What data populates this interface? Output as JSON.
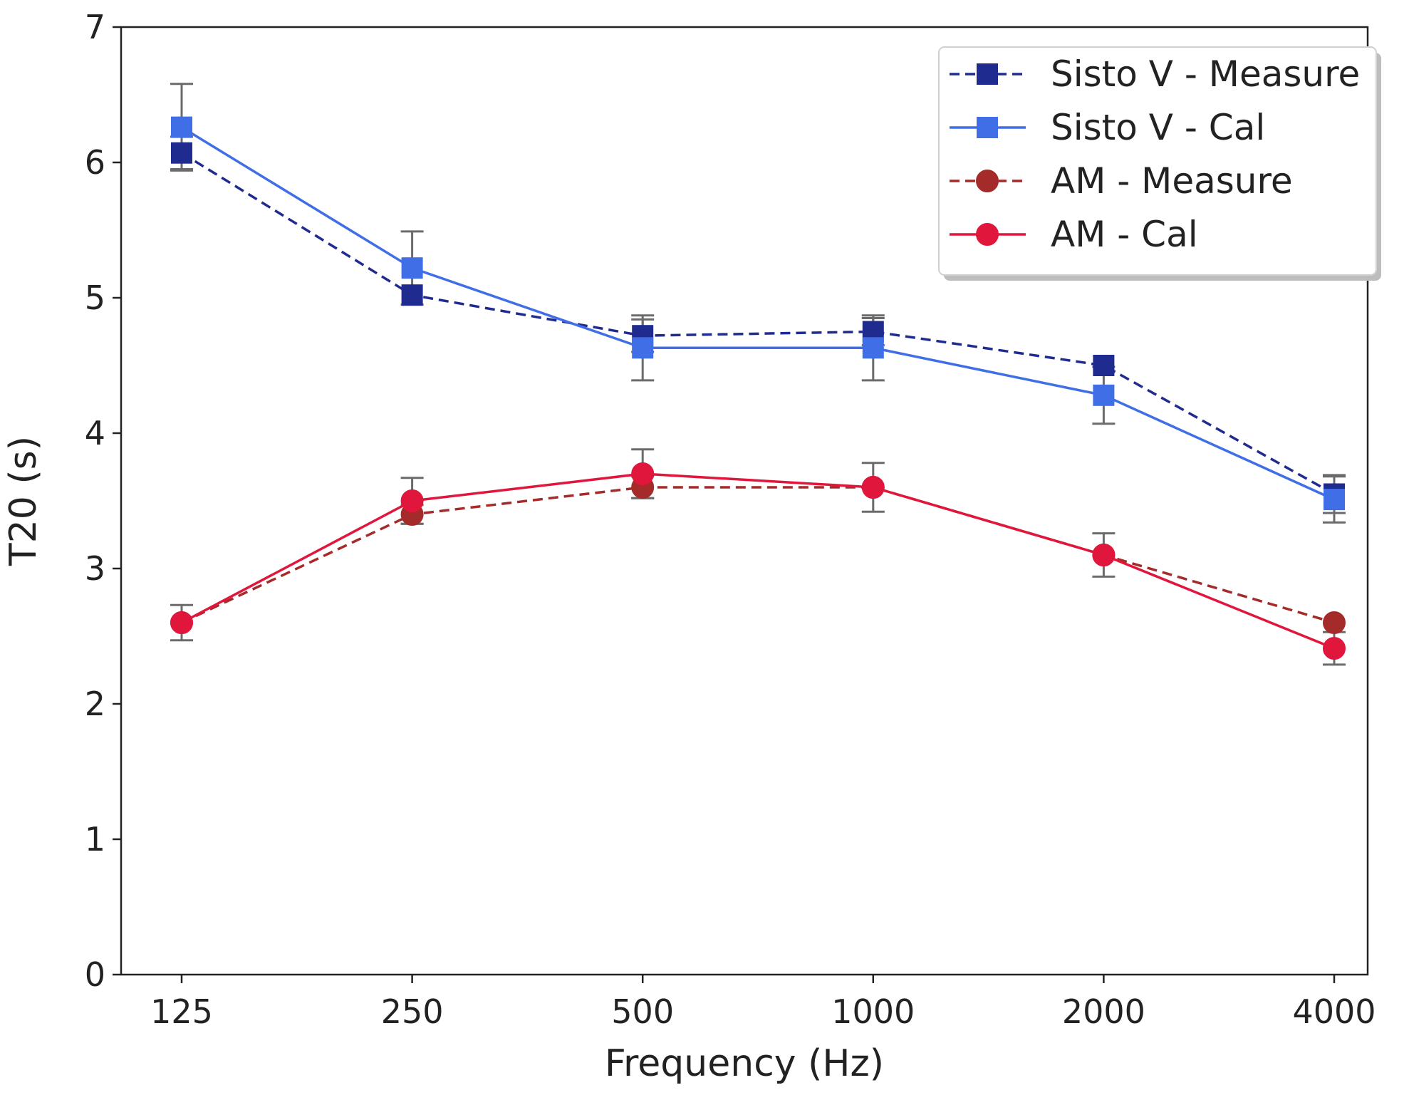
{
  "chart_data": {
    "type": "line",
    "title": "",
    "xlabel": "Frequency (Hz)",
    "ylabel": "T20 (s)",
    "categories": [
      "125",
      "250",
      "500",
      "1000",
      "2000",
      "4000"
    ],
    "ylim": [
      0,
      7
    ],
    "yticks": [
      "0",
      "1",
      "2",
      "3",
      "4",
      "5",
      "6",
      "7"
    ],
    "grid": false,
    "legend_position": "top-right",
    "series": [
      {
        "name": "Sisto V - Measure",
        "values": [
          6.07,
          5.02,
          4.72,
          4.75,
          4.5,
          3.55
        ],
        "errors": [
          0.12,
          0.0,
          0.12,
          0.1,
          0.0,
          0.14
        ],
        "color": "#1f2b8f",
        "linestyle": "dashed",
        "marker": "square"
      },
      {
        "name": "Sisto V - Cal",
        "values": [
          6.26,
          5.22,
          4.63,
          4.63,
          4.28,
          3.51
        ],
        "errors": [
          0.32,
          0.27,
          0.24,
          0.24,
          0.21,
          0.17
        ],
        "color": "#3f6ee6",
        "linestyle": "solid",
        "marker": "square"
      },
      {
        "name": "AM - Measure",
        "values": [
          2.6,
          3.4,
          3.6,
          3.6,
          3.1,
          2.6
        ],
        "errors": [
          0.0,
          0.07,
          0.08,
          0.0,
          0.0,
          0.0
        ],
        "color": "#a52a2a",
        "linestyle": "dashed",
        "marker": "circle"
      },
      {
        "name": "AM - Cal",
        "values": [
          2.6,
          3.5,
          3.7,
          3.6,
          3.1,
          2.41
        ],
        "errors": [
          0.13,
          0.17,
          0.18,
          0.18,
          0.16,
          0.12
        ],
        "color": "#e0163c",
        "linestyle": "solid",
        "marker": "circle"
      }
    ]
  }
}
